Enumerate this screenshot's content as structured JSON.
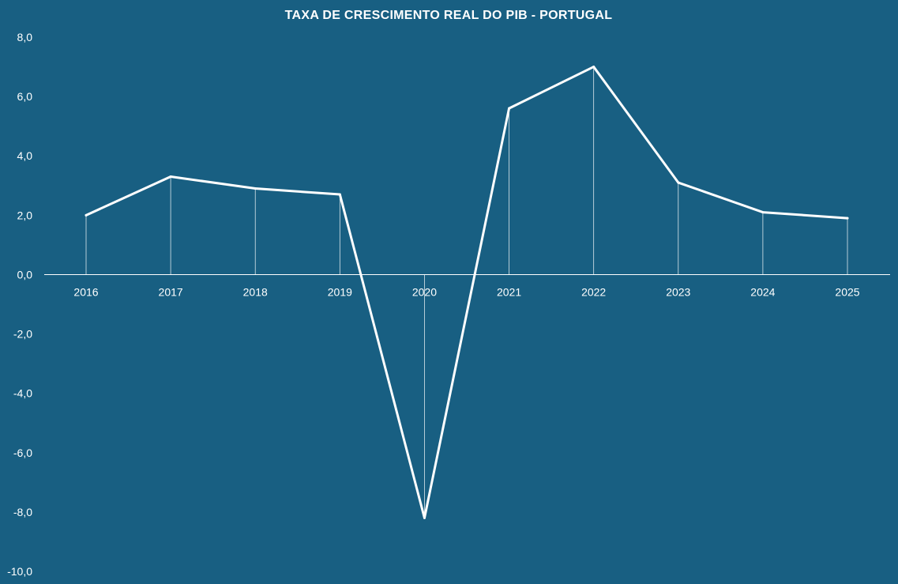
{
  "chart_data": {
    "type": "line",
    "title": "TAXA DE CRESCIMENTO REAL DO PIB - PORTUGAL",
    "xlabel": "",
    "ylabel": "",
    "categories": [
      "2016",
      "2017",
      "2018",
      "2019",
      "2020",
      "2021",
      "2022",
      "2023",
      "2024",
      "2025"
    ],
    "series": [
      {
        "values": [
          2.0,
          3.3,
          2.9,
          2.7,
          -8.2,
          5.6,
          7.0,
          3.1,
          2.1,
          1.9
        ]
      }
    ],
    "ylim": [
      -10,
      8
    ],
    "y_ticks": [
      8,
      6,
      4,
      2,
      0,
      -2,
      -4,
      -6,
      -8,
      -10
    ],
    "y_tick_labels": [
      "8,0",
      "6,0",
      "4,0",
      "2,0",
      "0,0",
      "-2,0",
      "-4,0",
      "-6,0",
      "-8,0",
      "-10,0"
    ],
    "grid": false,
    "drop_lines": true,
    "legend": "none"
  },
  "colors": {
    "background": "#185f82",
    "line": "#ffffff",
    "text": "#ffffff"
  }
}
